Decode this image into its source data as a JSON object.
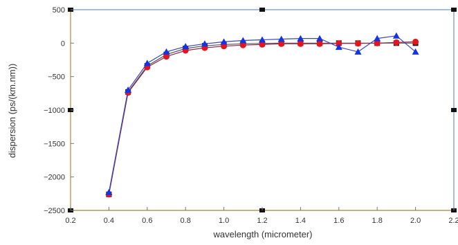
{
  "colors": {
    "frame_left_bottom": "#b89a5a",
    "frame_top_right": "#6f93c8",
    "marker_box": "#111111",
    "series_black": "#1a1a1a",
    "series_red": "#e8141c",
    "series_blue": "#1432e6",
    "line_black": "#555555",
    "line_red": "#8b2a4a",
    "line_blue": "#3a46b8"
  },
  "chart_data": {
    "type": "line",
    "title": "",
    "xlabel": "wavelength (micrometer)",
    "ylabel": "dispersion (ps/(km.nm))",
    "xlim": [
      0.2,
      2.2
    ],
    "ylim": [
      -2500,
      500
    ],
    "x_ticks": [
      0.2,
      0.4,
      0.6,
      0.8,
      1.0,
      1.2,
      1.4,
      1.6,
      1.8,
      2.0,
      2.2
    ],
    "x_tick_labels": [
      "0.2",
      "0.4",
      "0.6",
      "0.8",
      "1.0",
      "1.2",
      "1.4",
      "1.6",
      "1.8",
      "2.0",
      "2.2"
    ],
    "y_ticks": [
      500,
      0,
      -500,
      -1000,
      -1500,
      -2000,
      -2500
    ],
    "y_tick_labels": [
      "500",
      "0",
      "−500",
      "−1000",
      "−1500",
      "−2000",
      "−2500"
    ],
    "grid": false,
    "x": [
      0.4,
      0.5,
      0.6,
      0.7,
      0.8,
      0.9,
      1.0,
      1.1,
      1.2,
      1.3,
      1.4,
      1.5,
      1.6,
      1.7,
      1.8,
      1.9,
      2.0
    ],
    "series": [
      {
        "marker": "square",
        "color_key": "series_black",
        "line_key": "line_black",
        "values": [
          -2260,
          -730,
          -340,
          -170,
          -80,
          -40,
          -20,
          -10,
          -5,
          0,
          0,
          0,
          0,
          0,
          0,
          0,
          0
        ]
      },
      {
        "marker": "circle",
        "color_key": "series_red",
        "line_key": "line_red",
        "values": [
          -2260,
          -740,
          -360,
          -200,
          -110,
          -70,
          -45,
          -30,
          -20,
          -10,
          -10,
          -10,
          -5,
          -5,
          0,
          10,
          20
        ]
      },
      {
        "marker": "triangle",
        "color_key": "series_blue",
        "line_key": "line_blue",
        "values": [
          -2230,
          -700,
          -300,
          -130,
          -50,
          -10,
          20,
          40,
          50,
          60,
          70,
          70,
          -60,
          -130,
          70,
          110,
          -130
        ]
      }
    ]
  }
}
